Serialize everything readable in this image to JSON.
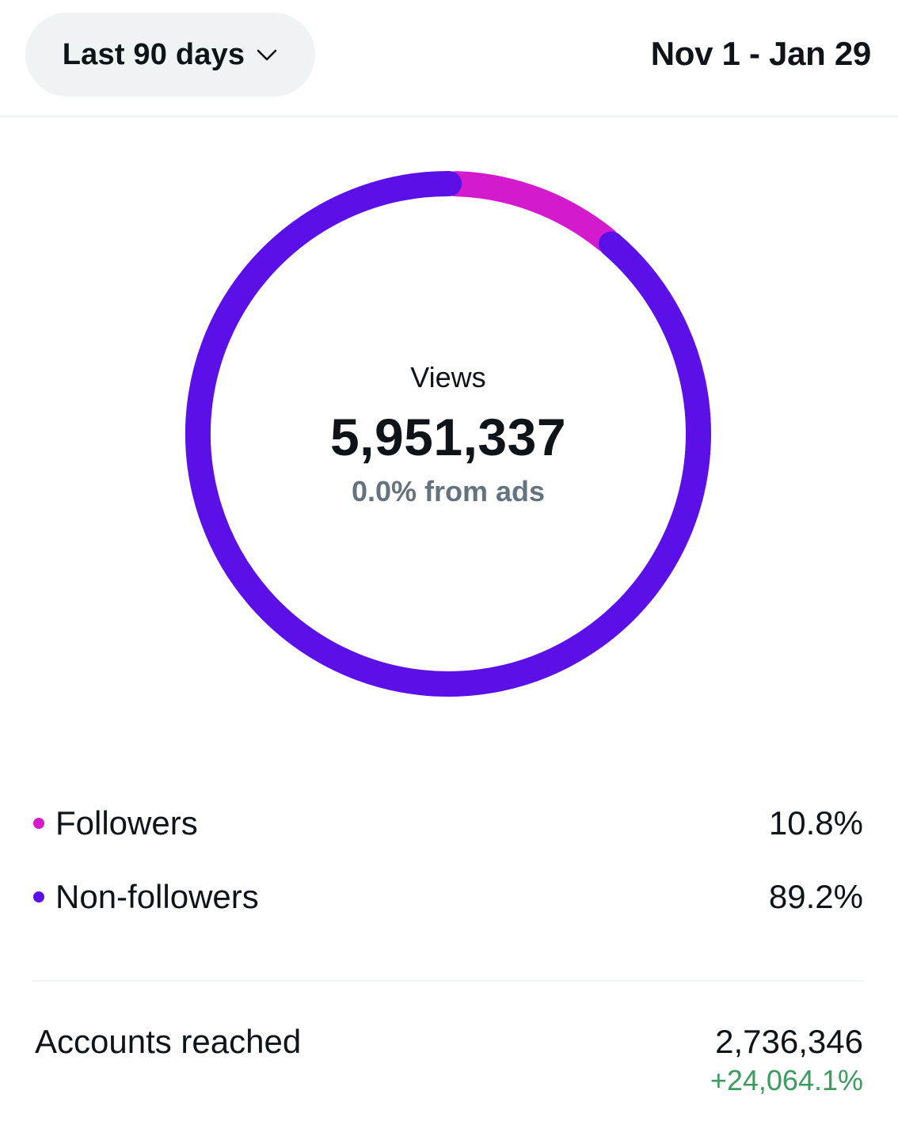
{
  "header": {
    "range_label": "Last 90 days",
    "date_range": "Nov 1 - Jan 29"
  },
  "colors": {
    "followers": "#d31bcd",
    "non_followers": "#5a10e6",
    "positive_change": "#3e9b5f"
  },
  "summary": {
    "views_label": "Views",
    "views_value": "5,951,337",
    "views_sub": "0.0% from ads"
  },
  "chart_data": {
    "type": "pie",
    "categories": [
      "Followers",
      "Non-followers"
    ],
    "values": [
      10.8,
      89.2
    ],
    "title": "",
    "xlabel": "",
    "ylabel": ""
  },
  "legend": [
    {
      "label": "Followers",
      "value": "10.8%"
    },
    {
      "label": "Non-followers",
      "value": "89.2%"
    }
  ],
  "accounts": {
    "label": "Accounts reached",
    "value": "2,736,346",
    "change": "+24,064.1%"
  }
}
